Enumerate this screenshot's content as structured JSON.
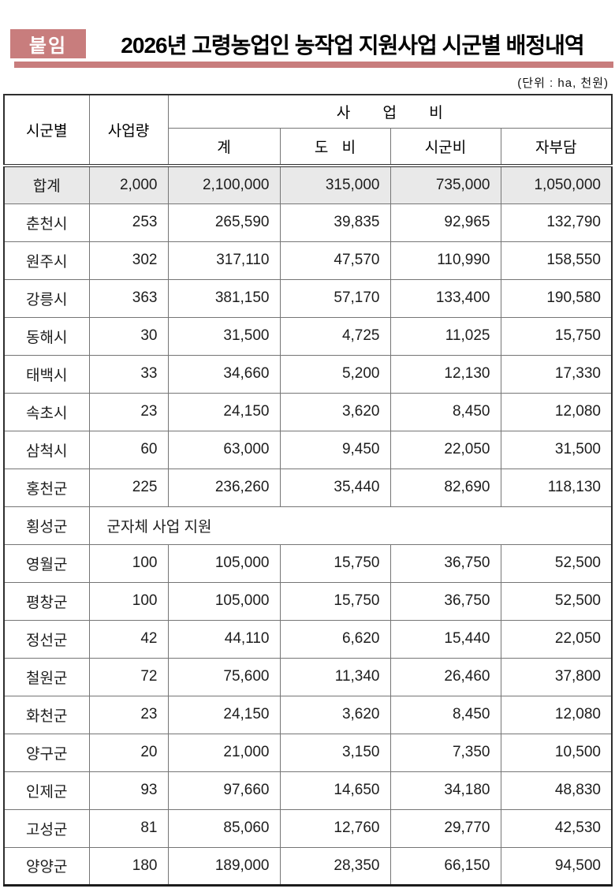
{
  "page": {
    "badge": "붙임",
    "title": "2026년 고령농업인 농작업 지원사업 시군별 배정내역",
    "unit_note": "(단위 : ha, 천원)",
    "accent_color": "#c87d7d"
  },
  "table": {
    "headers": {
      "region": "시군별",
      "volume": "사업량",
      "cost_group": "사 업 비",
      "sub_total": "계",
      "sub_province": "도 비",
      "sub_citycounty": "시군비",
      "sub_self": "자부담"
    },
    "total_row": {
      "name": "합계",
      "values": [
        "2,000",
        "2,100,000",
        "315,000",
        "735,000",
        "1,050,000"
      ]
    },
    "rows": [
      {
        "name": "춘천시",
        "values": [
          "253",
          "265,590",
          "39,835",
          "92,965",
          "132,790"
        ]
      },
      {
        "name": "원주시",
        "values": [
          "302",
          "317,110",
          "47,570",
          "110,990",
          "158,550"
        ]
      },
      {
        "name": "강릉시",
        "values": [
          "363",
          "381,150",
          "57,170",
          "133,400",
          "190,580"
        ]
      },
      {
        "name": "동해시",
        "values": [
          "30",
          "31,500",
          "4,725",
          "11,025",
          "15,750"
        ]
      },
      {
        "name": "태백시",
        "values": [
          "33",
          "34,660",
          "5,200",
          "12,130",
          "17,330"
        ]
      },
      {
        "name": "속초시",
        "values": [
          "23",
          "24,150",
          "3,620",
          "8,450",
          "12,080"
        ]
      },
      {
        "name": "삼척시",
        "values": [
          "60",
          "63,000",
          "9,450",
          "22,050",
          "31,500"
        ]
      },
      {
        "name": "홍천군",
        "values": [
          "225",
          "236,260",
          "35,440",
          "82,690",
          "118,130"
        ]
      },
      {
        "name": "횡성군",
        "note": "군자체 사업 지원"
      },
      {
        "name": "영월군",
        "values": [
          "100",
          "105,000",
          "15,750",
          "36,750",
          "52,500"
        ]
      },
      {
        "name": "평창군",
        "values": [
          "100",
          "105,000",
          "15,750",
          "36,750",
          "52,500"
        ]
      },
      {
        "name": "정선군",
        "values": [
          "42",
          "44,110",
          "6,620",
          "15,440",
          "22,050"
        ]
      },
      {
        "name": "철원군",
        "values": [
          "72",
          "75,600",
          "11,340",
          "26,460",
          "37,800"
        ]
      },
      {
        "name": "화천군",
        "values": [
          "23",
          "24,150",
          "3,620",
          "8,450",
          "12,080"
        ]
      },
      {
        "name": "양구군",
        "values": [
          "20",
          "21,000",
          "3,150",
          "7,350",
          "10,500"
        ]
      },
      {
        "name": "인제군",
        "values": [
          "93",
          "97,660",
          "14,650",
          "34,180",
          "48,830"
        ]
      },
      {
        "name": "고성군",
        "values": [
          "81",
          "85,060",
          "12,760",
          "29,770",
          "42,530"
        ]
      },
      {
        "name": "양양군",
        "values": [
          "180",
          "189,000",
          "28,350",
          "66,150",
          "94,500"
        ]
      }
    ]
  }
}
